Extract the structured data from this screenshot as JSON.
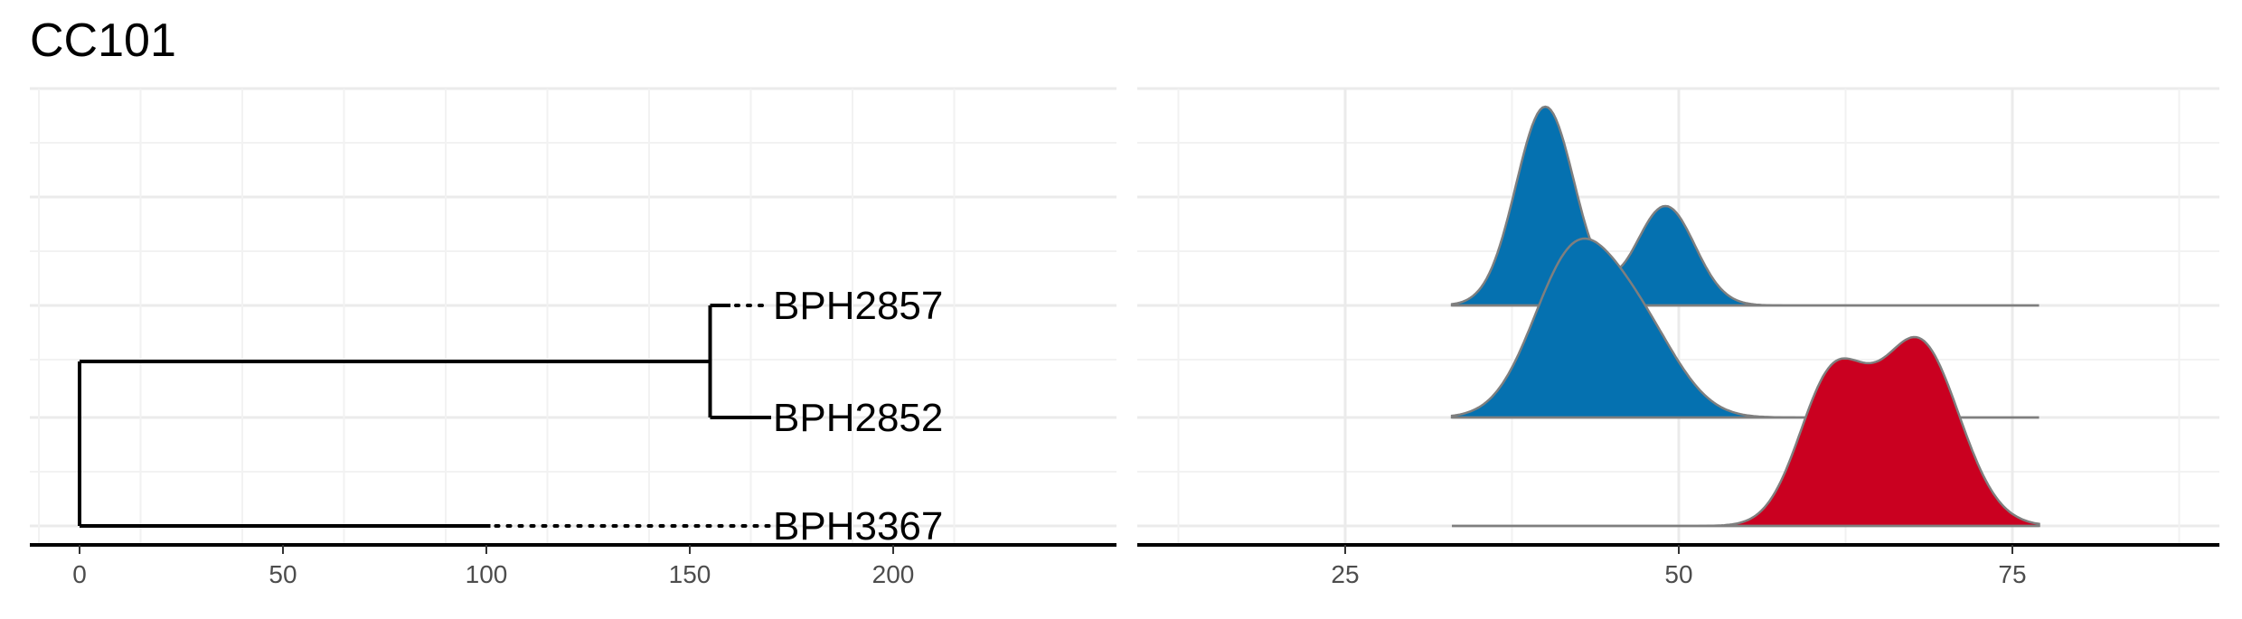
{
  "title": "CC101",
  "chart_data": [
    {
      "type": "dendrogram",
      "x_ticks": [
        0,
        50,
        100,
        150,
        200
      ],
      "xlim": [
        -10,
        230
      ],
      "grid": true,
      "tips": [
        {
          "label": "BPH2857",
          "branch_length": 5
        },
        {
          "label": "BPH2852",
          "branch_length": 15
        },
        {
          "label": "BPH3367",
          "branch_length": 101
        }
      ],
      "nodes": [
        {
          "name": "root",
          "x": 0,
          "children": [
            "inner",
            "BPH3367"
          ]
        },
        {
          "name": "inner",
          "x": 155,
          "children": [
            "BPH2857",
            "BPH2852"
          ]
        }
      ],
      "tip_label_x": 170
    },
    {
      "type": "ridgeline",
      "x_ticks": [
        25,
        50,
        75
      ],
      "xlim": [
        10,
        90
      ],
      "grid": true,
      "series": [
        {
          "label": "BPH2857",
          "color": "#0571b0",
          "range": [
            33,
            77
          ],
          "peaks": [
            {
              "mu": 40,
              "sd": 2.2,
              "h": 1.0
            },
            {
              "mu": 49,
              "sd": 2.2,
              "h": 0.5
            }
          ]
        },
        {
          "label": "BPH2852",
          "color": "#0571b0",
          "range": [
            33,
            77
          ],
          "peaks": [
            {
              "mu": 42,
              "sd": 3.0,
              "h": 0.9
            },
            {
              "mu": 47,
              "sd": 3.0,
              "h": 0.5
            }
          ]
        },
        {
          "label": "BPH3367",
          "color": "#ca0020",
          "range": [
            33,
            77
          ],
          "peaks": [
            {
              "mu": 61.5,
              "sd": 2.5,
              "h": 0.75
            },
            {
              "mu": 68,
              "sd": 3.0,
              "h": 0.95
            }
          ]
        }
      ]
    }
  ]
}
